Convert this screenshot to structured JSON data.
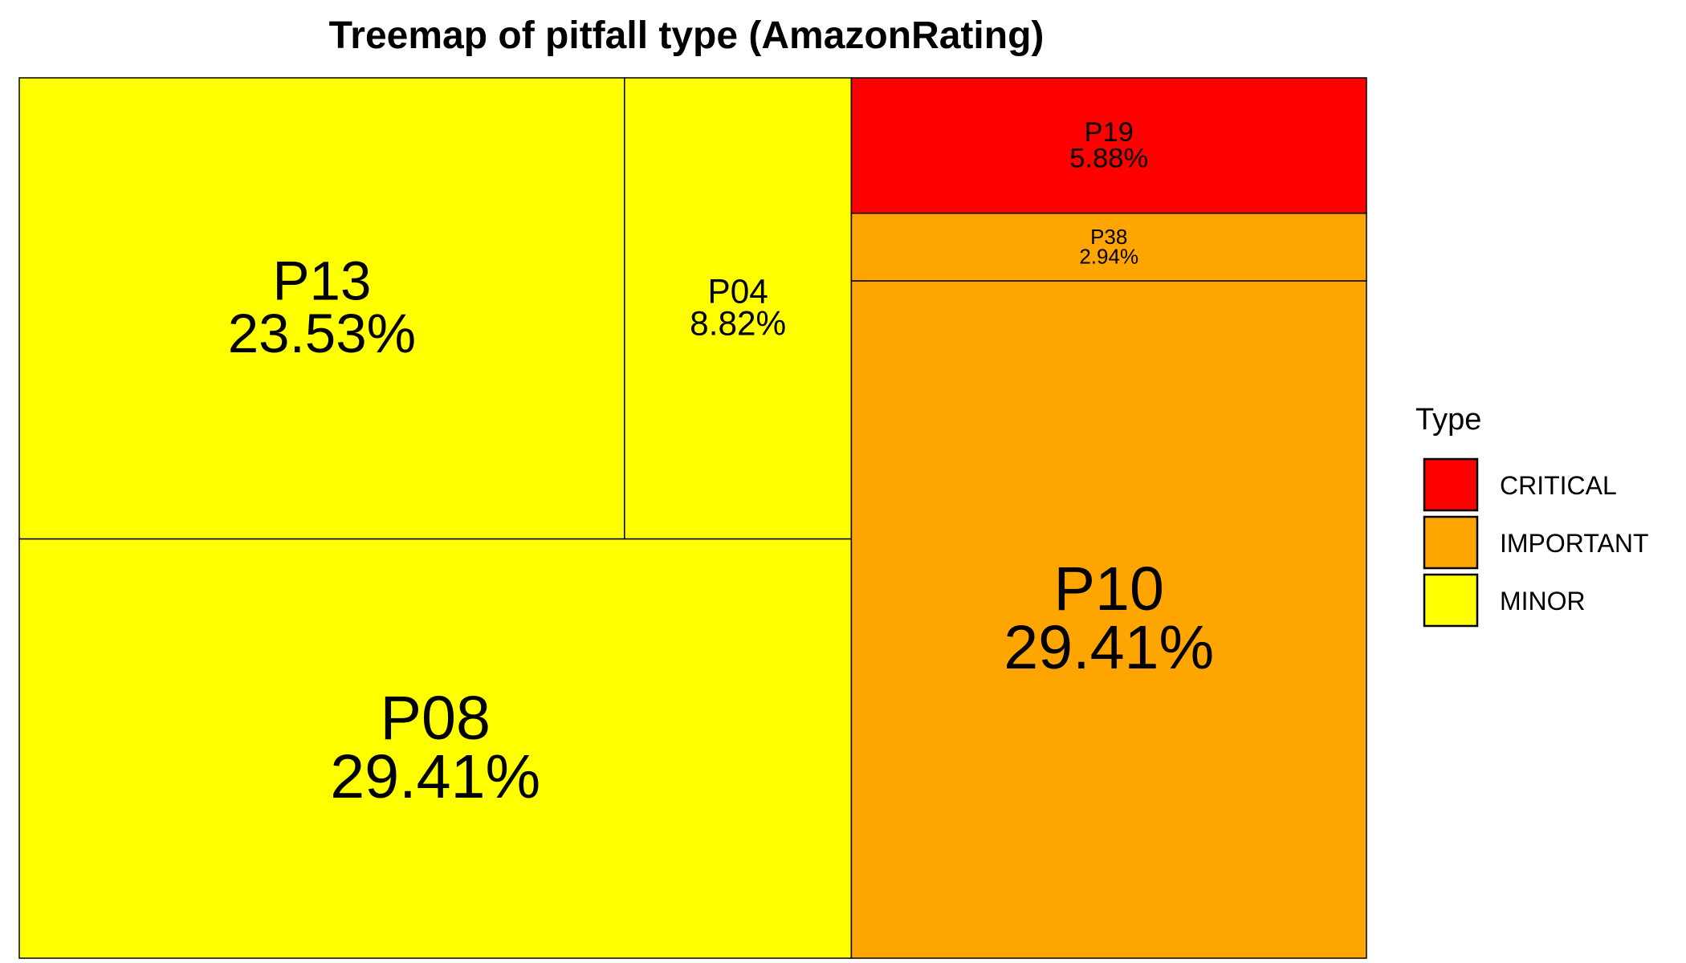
{
  "chart_data": {
    "type": "treemap",
    "title": "Treemap of pitfall type (AmazonRating)",
    "legend": {
      "title": "Type",
      "position": "right",
      "entries": [
        {
          "label": "CRITICAL",
          "color": "#ff0000"
        },
        {
          "label": "IMPORTANT",
          "color": "#ffa500"
        },
        {
          "label": "MINOR",
          "color": "#ffff00"
        }
      ]
    },
    "tiles": [
      {
        "name": "P13",
        "value": 23.53,
        "label": "23.53%",
        "type": "MINOR"
      },
      {
        "name": "P04",
        "value": 8.82,
        "label": "8.82%",
        "type": "MINOR"
      },
      {
        "name": "P08",
        "value": 29.41,
        "label": "29.41%",
        "type": "MINOR"
      },
      {
        "name": "P19",
        "value": 5.88,
        "label": "5.88%",
        "type": "CRITICAL"
      },
      {
        "name": "P38",
        "value": 2.94,
        "label": "2.94%",
        "type": "IMPORTANT"
      },
      {
        "name": "P10",
        "value": 29.41,
        "label": "29.41%",
        "type": "IMPORTANT"
      }
    ]
  }
}
